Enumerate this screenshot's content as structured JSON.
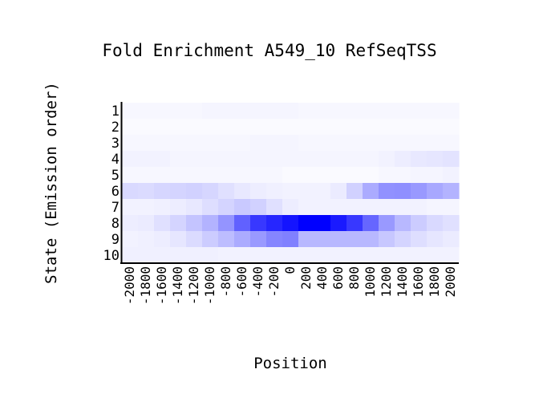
{
  "chart_data": {
    "type": "heatmap",
    "title": "Fold Enrichment A549_10 RefSeqTSS",
    "xlabel": "Position",
    "ylabel": "State (Emission order)",
    "x": [
      "-2000",
      "-1800",
      "-1600",
      "-1400",
      "-1200",
      "-1000",
      "-800",
      "-600",
      "-400",
      "-200",
      "0",
      "200",
      "400",
      "600",
      "800",
      "1000",
      "1200",
      "1400",
      "1600",
      "1800",
      "2000"
    ],
    "y": [
      "1",
      "2",
      "3",
      "4",
      "5",
      "6",
      "7",
      "8",
      "9",
      "10"
    ],
    "color_low": "#ffffff",
    "color_high": "#0000ff",
    "values": [
      [
        0.03,
        0.03,
        0.03,
        0.03,
        0.03,
        0.04,
        0.04,
        0.04,
        0.04,
        0.04,
        0.04,
        0.03,
        0.03,
        0.03,
        0.03,
        0.03,
        0.03,
        0.03,
        0.03,
        0.03,
        0.03
      ],
      [
        0.02,
        0.02,
        0.02,
        0.02,
        0.02,
        0.02,
        0.02,
        0.02,
        0.02,
        0.02,
        0.02,
        0.02,
        0.02,
        0.02,
        0.02,
        0.02,
        0.02,
        0.02,
        0.02,
        0.02,
        0.02
      ],
      [
        0.03,
        0.03,
        0.03,
        0.03,
        0.03,
        0.03,
        0.03,
        0.03,
        0.04,
        0.04,
        0.04,
        0.03,
        0.03,
        0.03,
        0.03,
        0.03,
        0.03,
        0.03,
        0.03,
        0.03,
        0.03
      ],
      [
        0.05,
        0.05,
        0.05,
        0.04,
        0.04,
        0.04,
        0.04,
        0.04,
        0.04,
        0.04,
        0.04,
        0.04,
        0.04,
        0.04,
        0.04,
        0.04,
        0.05,
        0.07,
        0.09,
        0.1,
        0.11
      ],
      [
        0.03,
        0.03,
        0.03,
        0.03,
        0.03,
        0.03,
        0.03,
        0.03,
        0.03,
        0.03,
        0.02,
        0.02,
        0.02,
        0.02,
        0.02,
        0.02,
        0.03,
        0.03,
        0.04,
        0.04,
        0.05
      ],
      [
        0.15,
        0.14,
        0.16,
        0.17,
        0.18,
        0.16,
        0.12,
        0.09,
        0.07,
        0.06,
        0.05,
        0.05,
        0.05,
        0.08,
        0.18,
        0.33,
        0.43,
        0.44,
        0.4,
        0.34,
        0.3
      ],
      [
        0.05,
        0.05,
        0.06,
        0.07,
        0.09,
        0.13,
        0.17,
        0.21,
        0.18,
        0.12,
        0.07,
        0.05,
        0.05,
        0.05,
        0.05,
        0.05,
        0.05,
        0.05,
        0.05,
        0.04,
        0.04
      ],
      [
        0.07,
        0.08,
        0.12,
        0.17,
        0.23,
        0.3,
        0.42,
        0.62,
        0.78,
        0.85,
        0.92,
        1.0,
        1.0,
        0.9,
        0.78,
        0.6,
        0.4,
        0.28,
        0.2,
        0.15,
        0.12
      ],
      [
        0.05,
        0.06,
        0.07,
        0.1,
        0.14,
        0.2,
        0.26,
        0.33,
        0.4,
        0.48,
        0.5,
        0.28,
        0.28,
        0.28,
        0.28,
        0.28,
        0.22,
        0.17,
        0.13,
        0.1,
        0.08
      ],
      [
        0.06,
        0.06,
        0.06,
        0.06,
        0.06,
        0.06,
        0.05,
        0.05,
        0.05,
        0.05,
        0.05,
        0.05,
        0.05,
        0.05,
        0.05,
        0.05,
        0.05,
        0.05,
        0.05,
        0.05,
        0.05
      ]
    ]
  }
}
